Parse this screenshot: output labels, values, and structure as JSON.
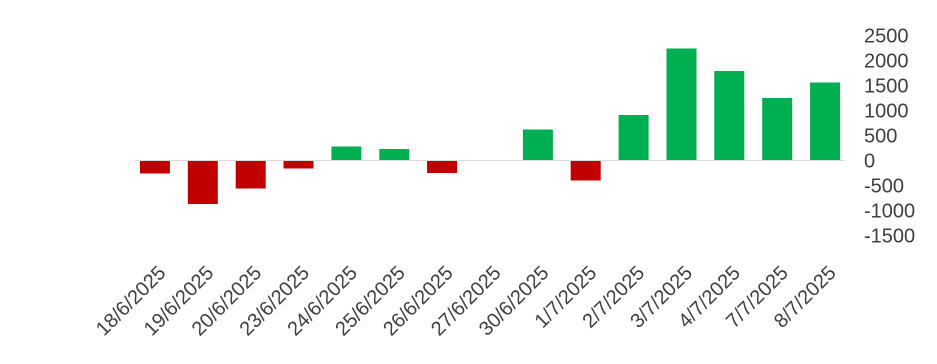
{
  "chart_data": {
    "type": "bar",
    "categories": [
      "18/6/2025",
      "19/6/2025",
      "20/6/2025",
      "23/6/2025",
      "24/6/2025",
      "25/6/2025",
      "26/6/2025",
      "27/6/2025",
      "30/6/2025",
      "1/7/2025",
      "2/7/2025",
      "3/7/2025",
      "4/7/2025",
      "7/7/2025",
      "8/7/2025"
    ],
    "values": [
      -260,
      -870,
      -560,
      -160,
      280,
      230,
      -250,
      0,
      620,
      -400,
      910,
      2240,
      1790,
      1250,
      1560
    ],
    "title": "",
    "xlabel": "",
    "ylabel": "",
    "ylim": [
      -1500,
      2500
    ],
    "yticks": [
      2500,
      2000,
      1500,
      1000,
      500,
      0,
      -500,
      -1000,
      -1500
    ],
    "y_axis_position": "right",
    "grid": false,
    "legend": "none",
    "colors": {
      "positive": "#00B050",
      "negative": "#C00000",
      "axis": "#D9D9D9",
      "text": "#404040"
    }
  }
}
